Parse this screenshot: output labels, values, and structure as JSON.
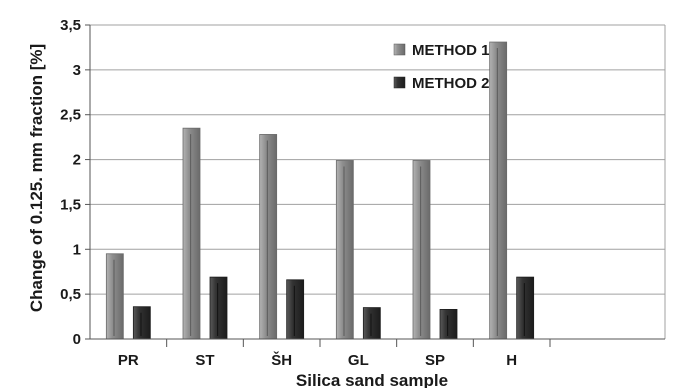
{
  "chart_data": {
    "type": "bar",
    "categories": [
      "PR",
      "ST",
      "ŠH",
      "GL",
      "SP",
      "H"
    ],
    "series": [
      {
        "name": "METHOD 1",
        "values": [
          0.95,
          2.35,
          2.28,
          1.99,
          1.99,
          3.31
        ],
        "color": "#8c8c8c"
      },
      {
        "name": "METHOD 2",
        "values": [
          0.36,
          0.69,
          0.66,
          0.35,
          0.33,
          0.69
        ],
        "color": "#3a3a3a"
      }
    ],
    "ylabel": "Change of 0.125. mm fraction [%]",
    "xlabel": "Silica sand sample",
    "ylim": [
      0,
      3.5
    ],
    "yticks": [
      "0",
      "0,5",
      "1",
      "1,5",
      "2",
      "2,5",
      "3",
      "3,5"
    ],
    "grid": true,
    "legend_position": "top-right"
  }
}
